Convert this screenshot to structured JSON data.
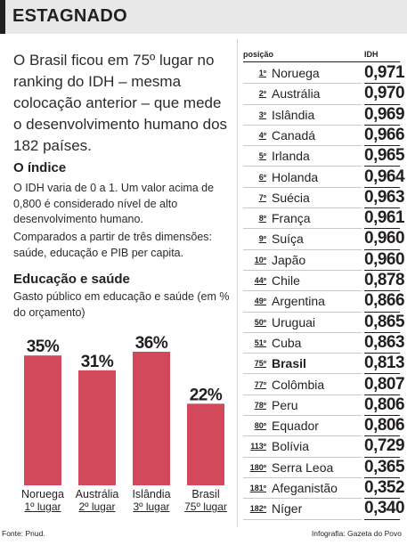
{
  "header": {
    "title": "ESTAGNADO"
  },
  "lead": "O Brasil ficou em 75º lugar no ranking do IDH – mesma colocação anterior – que mede o desenvolvimento humano dos 182 países.",
  "indice": {
    "heading": "O índice",
    "text1": "O IDH varia de 0 a 1. Um valor acima de 0,800 é considerado nível de alto desenvolvimento humano.",
    "text2": "Comparados a partir de três dimensões: saúde, educação e PIB per capita."
  },
  "educacao": {
    "heading": "Educação e saúde",
    "subtitle": "Gasto público em educação e saúde (em % do orçamento)"
  },
  "chart_data": {
    "type": "bar",
    "title": "Educação e saúde",
    "subtitle": "Gasto público em educação e saúde (em % do orçamento)",
    "categories": [
      "Noruega",
      "Austrália",
      "Islândia",
      "Brasil"
    ],
    "sublabels": [
      "1º lugar",
      "2º lugar",
      "3º lugar",
      "75º lugar"
    ],
    "values": [
      35,
      31,
      36,
      22
    ],
    "value_labels": [
      "35%",
      "31%",
      "36%",
      "22%"
    ],
    "ylim": [
      0,
      36
    ],
    "grid": false,
    "color": "#d2495b"
  },
  "table": {
    "col_pos": "posição",
    "col_idh": "IDH",
    "rows": [
      {
        "pos": "1º",
        "country": "Noruega",
        "idh": "0,971"
      },
      {
        "pos": "2º",
        "country": "Austrália",
        "idh": "0,970"
      },
      {
        "pos": "3º",
        "country": "Islândia",
        "idh": "0,969"
      },
      {
        "pos": "4º",
        "country": "Canadá",
        "idh": "0,966"
      },
      {
        "pos": "5º",
        "country": "Irlanda",
        "idh": "0,965"
      },
      {
        "pos": "6º",
        "country": "Holanda",
        "idh": "0,964"
      },
      {
        "pos": "7º",
        "country": "Suécia",
        "idh": "0,963"
      },
      {
        "pos": "8º",
        "country": "França",
        "idh": "0,961"
      },
      {
        "pos": "9º",
        "country": "Suíça",
        "idh": "0,960"
      },
      {
        "pos": "10º",
        "country": "Japão",
        "idh": "0,960"
      },
      {
        "pos": "44º",
        "country": "Chile",
        "idh": "0,878"
      },
      {
        "pos": "49º",
        "country": "Argentina",
        "idh": "0,866"
      },
      {
        "pos": "50º",
        "country": "Uruguai",
        "idh": "0,865"
      },
      {
        "pos": "51º",
        "country": "Cuba",
        "idh": "0,863"
      },
      {
        "pos": "75º",
        "country": "Brasil",
        "idh": "0,813",
        "highlight": true
      },
      {
        "pos": "77º",
        "country": "Colômbia",
        "idh": "0,807"
      },
      {
        "pos": "78º",
        "country": "Peru",
        "idh": "0,806"
      },
      {
        "pos": "80º",
        "country": "Equador",
        "idh": "0,806"
      },
      {
        "pos": "113º",
        "country": "Bolívia",
        "idh": "0,729"
      },
      {
        "pos": "180º",
        "country": "Serra Leoa",
        "idh": "0,365"
      },
      {
        "pos": "181º",
        "country": "Afeganistão",
        "idh": "0,352"
      },
      {
        "pos": "182º",
        "country": "Níger",
        "idh": "0,340"
      }
    ]
  },
  "footer": {
    "source": "Fonte: Pnud.",
    "credit": "Infografia: Gazeta do Povo"
  },
  "colors": {
    "bar": "#d2495b",
    "header_bg": "#e8e8e9",
    "text": "#231f20"
  }
}
